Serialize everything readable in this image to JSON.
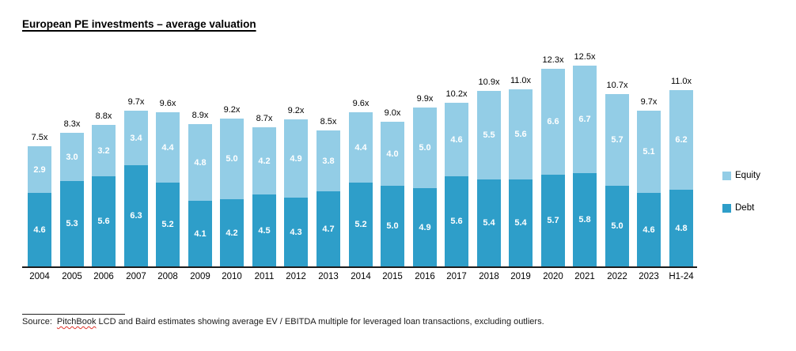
{
  "title": "European PE investments – average valuation",
  "legend": {
    "equity_label": "Equity",
    "debt_label": "Debt"
  },
  "source": {
    "label": "Source:",
    "spellchecked_word": "PitchBook",
    "text": "LCD and Baird estimates showing average EV / EBITDA multiple for leveraged loan transactions, excluding outliers."
  },
  "colors": {
    "debt": "#2E9EC9",
    "equity": "#93CDE6",
    "axis": "#1c1c1c"
  },
  "chart_data": {
    "type": "bar",
    "stacked": true,
    "title": "European PE investments – average valuation",
    "xlabel": "",
    "ylabel": "",
    "ylim": [
      0,
      13
    ],
    "grid": false,
    "legend_position": "right",
    "categories": [
      "2004",
      "2005",
      "2006",
      "2007",
      "2008",
      "2009",
      "2010",
      "2011",
      "2012",
      "2013",
      "2014",
      "2015",
      "2016",
      "2017",
      "2018",
      "2019",
      "2020",
      "2021",
      "2022",
      "2023",
      "H1-24"
    ],
    "series": [
      {
        "name": "Debt",
        "values": [
          4.6,
          5.3,
          5.6,
          6.3,
          5.2,
          4.1,
          4.2,
          4.5,
          4.3,
          4.7,
          5.2,
          5.0,
          4.9,
          5.6,
          5.4,
          5.4,
          5.7,
          5.8,
          5.0,
          4.6,
          4.8
        ]
      },
      {
        "name": "Equity",
        "values": [
          2.9,
          3.0,
          3.2,
          3.4,
          4.4,
          4.8,
          5.0,
          4.2,
          4.9,
          3.8,
          4.4,
          4.0,
          5.0,
          4.6,
          5.5,
          5.6,
          6.6,
          6.7,
          5.7,
          5.1,
          6.2
        ]
      }
    ],
    "total_labels": [
      "7.5x",
      "8.3x",
      "8.8x",
      "9.7x",
      "9.6x",
      "8.9x",
      "9.2x",
      "8.7x",
      "9.2x",
      "8.5x",
      "9.6x",
      "9.0x",
      "9.9x",
      "10.2x",
      "10.9x",
      "11.0x",
      "12.3x",
      "12.5x",
      "10.7x",
      "9.7x",
      "11.0x"
    ]
  }
}
